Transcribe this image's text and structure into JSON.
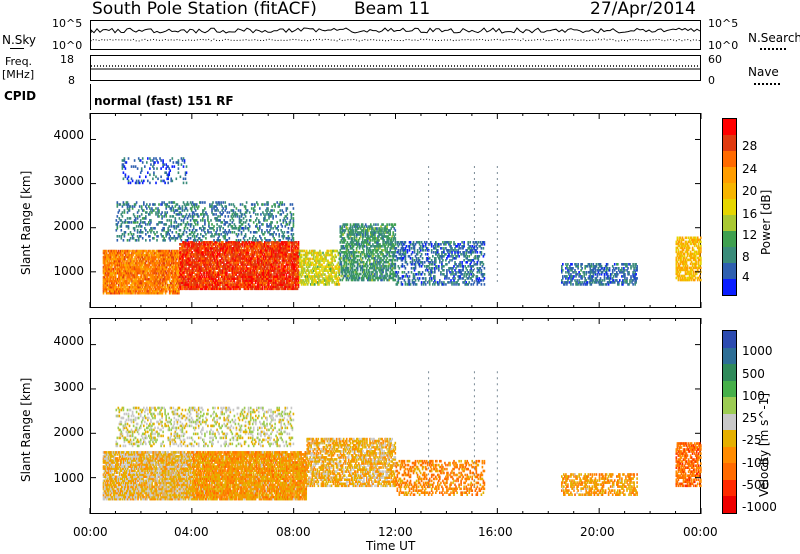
{
  "header": {
    "title": "South Pole Station (fitACF)",
    "beam": "Beam 11",
    "date": "27/Apr/2014"
  },
  "status_panel": {
    "nsky_label": "N.Sky",
    "nsearch_label": "N.Search",
    "nsky_ticks": [
      "10^5",
      "10^0"
    ],
    "nsearch_ticks": [
      "10^5",
      "10^0"
    ],
    "freq_label_1": "Freq.",
    "freq_label_2": "[MHz]",
    "freq_ticks": [
      "18",
      "8"
    ],
    "nave_label": "Nave",
    "nave_ticks": [
      "60",
      "0"
    ],
    "cpid_label": "CPID",
    "cpid_value": "normal (fast) 151 RF"
  },
  "power_panel": {
    "ylabel": "Slant Range [km]",
    "yticks": [
      "4000",
      "3000",
      "2000",
      "1000"
    ],
    "colorbar_label": "Power [dB]",
    "colorbar_ticks": [
      "28",
      "24",
      "20",
      "16",
      "12",
      "8",
      "4"
    ],
    "colors": [
      "#ff0000",
      "#e03a10",
      "#ff6a00",
      "#ff9d00",
      "#f7b500",
      "#e6d600",
      "#a9c832",
      "#3fa050",
      "#3a8c7a",
      "#2f60b0",
      "#0a1eff"
    ]
  },
  "velocity_panel": {
    "ylabel": "Slant Range [km]",
    "yticks": [
      "4000",
      "3000",
      "2000",
      "1000"
    ],
    "colorbar_label": "Velocity [m s^-1]",
    "colorbar_ticks": [
      "1000",
      "500",
      "100",
      "25",
      "-25",
      "-100",
      "-500",
      "-1000"
    ],
    "colors": [
      "#2c4bb0",
      "#2d6e96",
      "#2f8a5a",
      "#46b04a",
      "#9ccc53",
      "#c8c8c8",
      "#e5b000",
      "#ff8b00",
      "#ff6a00",
      "#ff2a00",
      "#ee0000"
    ]
  },
  "xaxis": {
    "label": "Time UT",
    "ticks": [
      "00:00",
      "04:00",
      "08:00",
      "12:00",
      "16:00",
      "20:00",
      "00:00"
    ]
  },
  "chart_data": [
    {
      "type": "heatmap",
      "title": "South Pole Station (fitACF)  Beam 11  27/Apr/2014",
      "xlabel": "Time UT",
      "ylabel": "Slant Range [km]",
      "xlim_hours": [
        0,
        24
      ],
      "ylim_km": [
        180,
        4600
      ],
      "colorbar": {
        "label": "Power [dB]",
        "range": [
          0,
          30
        ]
      },
      "blobs": [
        {
          "t0": 0.5,
          "t1": 3.5,
          "r0": 500,
          "r1": 1500,
          "value": 22,
          "density": 0.85
        },
        {
          "t0": 3.5,
          "t1": 8.2,
          "r0": 600,
          "r1": 1700,
          "value": 26,
          "density": 0.85
        },
        {
          "t0": 8.2,
          "t1": 9.8,
          "r0": 700,
          "r1": 1500,
          "value": 14,
          "density": 0.6
        },
        {
          "t0": 9.8,
          "t1": 12.0,
          "r0": 800,
          "r1": 2100,
          "value": 8,
          "density": 0.55
        },
        {
          "t0": 12.0,
          "t1": 15.5,
          "r0": 700,
          "r1": 1700,
          "value": 5,
          "density": 0.35
        },
        {
          "t0": 1.0,
          "t1": 8.0,
          "r0": 1700,
          "r1": 2600,
          "value": 6,
          "density": 0.25
        },
        {
          "t0": 1.2,
          "t1": 3.8,
          "r0": 3000,
          "r1": 3600,
          "value": 4,
          "density": 0.15
        },
        {
          "t0": 18.5,
          "t1": 21.5,
          "r0": 700,
          "r1": 1200,
          "value": 5,
          "density": 0.45
        },
        {
          "t0": 23.0,
          "t1": 24.0,
          "r0": 800,
          "r1": 1800,
          "value": 18,
          "density": 0.6
        }
      ]
    },
    {
      "type": "heatmap",
      "xlabel": "Time UT",
      "ylabel": "Slant Range [km]",
      "xlim_hours": [
        0,
        24
      ],
      "ylim_km": [
        180,
        4600
      ],
      "colorbar": {
        "label": "Velocity [m s^-1]",
        "range": [
          -1000,
          1000
        ]
      },
      "blobs": [
        {
          "t0": 0.5,
          "t1": 4.0,
          "r0": 500,
          "r1": 1600,
          "value": -150,
          "density": 0.85
        },
        {
          "t0": 4.0,
          "t1": 8.5,
          "r0": 500,
          "r1": 1600,
          "value": -300,
          "density": 0.85
        },
        {
          "t0": 8.5,
          "t1": 12.0,
          "r0": 800,
          "r1": 1900,
          "value": -200,
          "density": 0.6
        },
        {
          "t0": 12.0,
          "t1": 15.5,
          "r0": 600,
          "r1": 1400,
          "value": -400,
          "density": 0.35
        },
        {
          "t0": 1.0,
          "t1": 8.0,
          "r0": 1700,
          "r1": 2600,
          "value": 10,
          "density": 0.25
        },
        {
          "t0": 18.5,
          "t1": 21.5,
          "r0": 600,
          "r1": 1100,
          "value": -300,
          "density": 0.45
        },
        {
          "t0": 23.0,
          "t1": 24.0,
          "r0": 800,
          "r1": 1800,
          "value": -500,
          "density": 0.6
        }
      ]
    }
  ]
}
